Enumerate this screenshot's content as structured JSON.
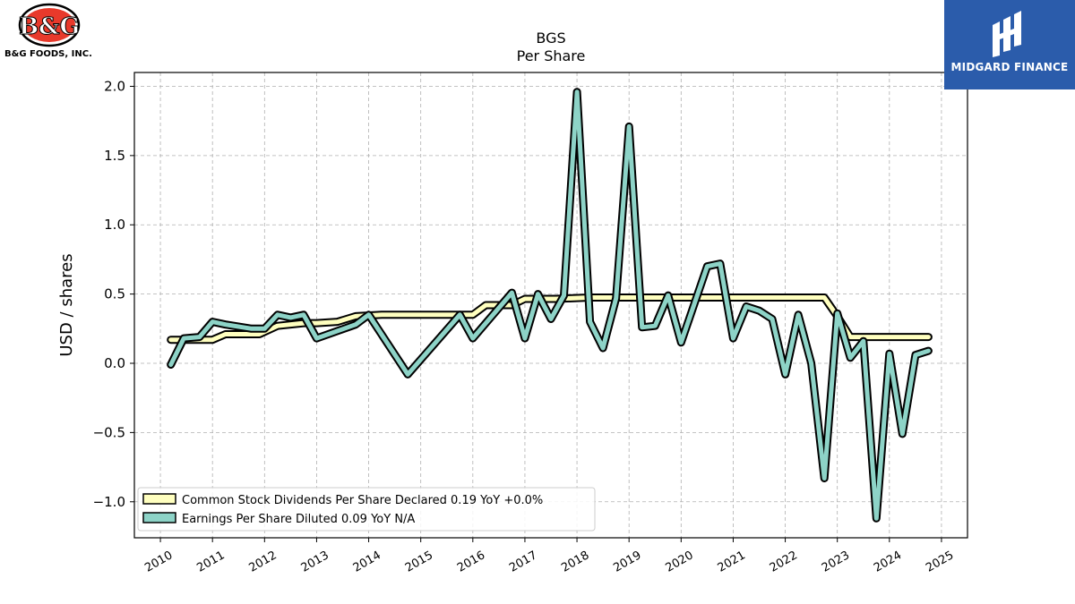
{
  "logos": {
    "company_name": "B&G FOODS, INC.",
    "company_mark": "B&G",
    "publisher_name": "MIDGARD FINANCE"
  },
  "chart_data": {
    "type": "line",
    "title": "BGS",
    "subtitle": "Per  Share",
    "xlabel": "",
    "ylabel": "USD / shares",
    "xlim": [
      2009.5,
      2025.5
    ],
    "ylim": [
      -1.26,
      2.1
    ],
    "x_ticks": [
      "2010",
      "2011",
      "2012",
      "2013",
      "2014",
      "2015",
      "2016",
      "2017",
      "2018",
      "2019",
      "2020",
      "2021",
      "2022",
      "2023",
      "2024",
      "2025"
    ],
    "y_ticks": [
      "2.0",
      "1.5",
      "1.0",
      "0.5",
      "0.0",
      "−0.5",
      "−1.0"
    ],
    "grid": true,
    "legend_position": "lower-left",
    "series": [
      {
        "name": "Common Stock Dividends Per Share Declared  0.19 YoY +0.0%",
        "color": "#ffffbf",
        "points": [
          [
            2010.2,
            0.17
          ],
          [
            2010.9,
            0.17
          ],
          [
            2011.0,
            0.17
          ],
          [
            2011.25,
            0.21
          ],
          [
            2011.9,
            0.21
          ],
          [
            2012.25,
            0.27
          ],
          [
            2012.75,
            0.29
          ],
          [
            2013.0,
            0.29
          ],
          [
            2013.4,
            0.3
          ],
          [
            2013.75,
            0.34
          ],
          [
            2014.25,
            0.35
          ],
          [
            2014.4,
            0.35
          ],
          [
            2015.6,
            0.35
          ],
          [
            2015.75,
            0.35
          ],
          [
            2016.0,
            0.35
          ],
          [
            2016.25,
            0.42
          ],
          [
            2016.5,
            0.42
          ],
          [
            2016.75,
            0.42
          ],
          [
            2017.0,
            0.465
          ],
          [
            2017.25,
            0.465
          ],
          [
            2017.6,
            0.465
          ],
          [
            2018.25,
            0.475
          ],
          [
            2020.6,
            0.475
          ],
          [
            2022.4,
            0.475
          ],
          [
            2022.75,
            0.475
          ],
          [
            2023.0,
            0.34
          ],
          [
            2023.25,
            0.19
          ],
          [
            2023.6,
            0.19
          ],
          [
            2024.75,
            0.19
          ]
        ]
      },
      {
        "name": "Earnings Per Share Diluted  0.09 YoY N/A",
        "color": "#8dd3c7",
        "points": [
          [
            2010.2,
            -0.01
          ],
          [
            2010.45,
            0.18
          ],
          [
            2010.75,
            0.19
          ],
          [
            2011.0,
            0.3
          ],
          [
            2011.25,
            0.28
          ],
          [
            2011.75,
            0.25
          ],
          [
            2012.0,
            0.25
          ],
          [
            2012.25,
            0.35
          ],
          [
            2012.5,
            0.33
          ],
          [
            2012.75,
            0.35
          ],
          [
            2013.0,
            0.18
          ],
          [
            2013.75,
            0.28
          ],
          [
            2014.0,
            0.35
          ],
          [
            2014.75,
            -0.08
          ],
          [
            2015.75,
            0.35
          ],
          [
            2016.0,
            0.18
          ],
          [
            2016.75,
            0.51
          ],
          [
            2017.0,
            0.18
          ],
          [
            2017.25,
            0.5
          ],
          [
            2017.5,
            0.32
          ],
          [
            2017.75,
            0.49
          ],
          [
            2018.0,
            1.96
          ],
          [
            2018.25,
            0.3
          ],
          [
            2018.5,
            0.11
          ],
          [
            2018.75,
            0.47
          ],
          [
            2019.0,
            1.71
          ],
          [
            2019.25,
            0.26
          ],
          [
            2019.5,
            0.27
          ],
          [
            2019.75,
            0.49
          ],
          [
            2020.0,
            0.15
          ],
          [
            2020.5,
            0.7
          ],
          [
            2020.75,
            0.72
          ],
          [
            2021.0,
            0.18
          ],
          [
            2021.25,
            0.41
          ],
          [
            2021.5,
            0.38
          ],
          [
            2021.75,
            0.32
          ],
          [
            2022.0,
            -0.08
          ],
          [
            2022.25,
            0.35
          ],
          [
            2022.5,
            0.0
          ],
          [
            2022.75,
            -0.83
          ],
          [
            2023.0,
            0.36
          ],
          [
            2023.25,
            0.04
          ],
          [
            2023.5,
            0.16
          ],
          [
            2023.75,
            -1.12
          ],
          [
            2024.0,
            0.07
          ],
          [
            2024.25,
            -0.51
          ],
          [
            2024.5,
            0.06
          ],
          [
            2024.75,
            0.09
          ]
        ]
      }
    ]
  }
}
